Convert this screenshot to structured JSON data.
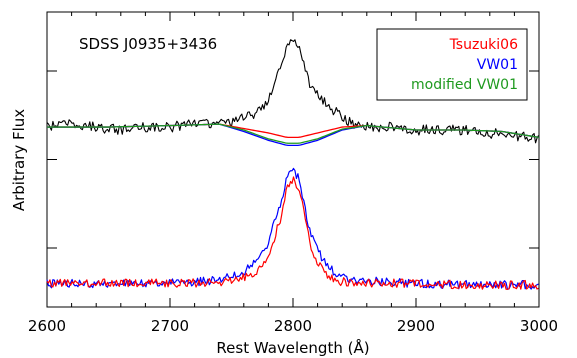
{
  "chart_data": {
    "type": "line",
    "title": "SDSS J0935+3436",
    "xlabel": "Rest Wavelength (Å)",
    "ylabel": "Arbitrary Flux",
    "xlim": [
      2600,
      3000
    ],
    "ylim": [
      0,
      1
    ],
    "x_ticks": [
      2600,
      2700,
      2800,
      2900,
      3000
    ],
    "grid": false,
    "legend_position": "top-right",
    "legend": [
      {
        "name": "Tsuzuki06",
        "color": "#ff0000"
      },
      {
        "name": "VW01",
        "color": "#0000ff"
      },
      {
        "name": "modified VW01",
        "color": "#1f9a1f"
      }
    ],
    "observed_spectrum": {
      "color": "#000000",
      "points": [
        [
          2600,
          0.61
        ],
        [
          2620,
          0.62
        ],
        [
          2640,
          0.61
        ],
        [
          2660,
          0.6
        ],
        [
          2680,
          0.61
        ],
        [
          2700,
          0.61
        ],
        [
          2720,
          0.62
        ],
        [
          2740,
          0.62
        ],
        [
          2750,
          0.63
        ],
        [
          2760,
          0.64
        ],
        [
          2770,
          0.66
        ],
        [
          2780,
          0.7
        ],
        [
          2785,
          0.76
        ],
        [
          2790,
          0.82
        ],
        [
          2795,
          0.88
        ],
        [
          2800,
          0.9
        ],
        [
          2805,
          0.87
        ],
        [
          2810,
          0.8
        ],
        [
          2815,
          0.74
        ],
        [
          2820,
          0.72
        ],
        [
          2830,
          0.68
        ],
        [
          2840,
          0.64
        ],
        [
          2850,
          0.62
        ],
        [
          2860,
          0.61
        ],
        [
          2870,
          0.61
        ],
        [
          2880,
          0.61
        ],
        [
          2900,
          0.6
        ],
        [
          2920,
          0.6
        ],
        [
          2940,
          0.6
        ],
        [
          2960,
          0.59
        ],
        [
          2980,
          0.58
        ],
        [
          3000,
          0.57
        ]
      ]
    },
    "models": [
      {
        "name": "Tsuzuki06",
        "color": "#ff0000",
        "points": [
          [
            2600,
            0.61
          ],
          [
            2650,
            0.61
          ],
          [
            2700,
            0.615
          ],
          [
            2740,
            0.62
          ],
          [
            2760,
            0.605
          ],
          [
            2780,
            0.59
          ],
          [
            2795,
            0.575
          ],
          [
            2805,
            0.575
          ],
          [
            2820,
            0.59
          ],
          [
            2840,
            0.61
          ],
          [
            2860,
            0.615
          ],
          [
            2900,
            0.6
          ],
          [
            2940,
            0.6
          ],
          [
            2970,
            0.595
          ],
          [
            3000,
            0.575
          ]
        ]
      },
      {
        "name": "VW01",
        "color": "#0000ff",
        "points": [
          [
            2600,
            0.61
          ],
          [
            2650,
            0.61
          ],
          [
            2700,
            0.615
          ],
          [
            2740,
            0.62
          ],
          [
            2760,
            0.595
          ],
          [
            2780,
            0.565
          ],
          [
            2795,
            0.548
          ],
          [
            2805,
            0.548
          ],
          [
            2820,
            0.565
          ],
          [
            2840,
            0.6
          ],
          [
            2860,
            0.615
          ],
          [
            2900,
            0.6
          ],
          [
            2940,
            0.6
          ],
          [
            2970,
            0.595
          ],
          [
            3000,
            0.575
          ]
        ]
      },
      {
        "name": "modified VW01",
        "color": "#1f9a1f",
        "points": [
          [
            2600,
            0.61
          ],
          [
            2650,
            0.61
          ],
          [
            2700,
            0.615
          ],
          [
            2740,
            0.62
          ],
          [
            2760,
            0.6
          ],
          [
            2780,
            0.57
          ],
          [
            2795,
            0.555
          ],
          [
            2805,
            0.555
          ],
          [
            2820,
            0.57
          ],
          [
            2840,
            0.603
          ],
          [
            2860,
            0.615
          ],
          [
            2900,
            0.6
          ],
          [
            2940,
            0.6
          ],
          [
            2970,
            0.595
          ],
          [
            3000,
            0.575
          ]
        ]
      }
    ],
    "residual_spectra": [
      {
        "name": "VW01",
        "color": "#0000ff",
        "points": [
          [
            2600,
            0.08
          ],
          [
            2650,
            0.08
          ],
          [
            2700,
            0.08
          ],
          [
            2740,
            0.09
          ],
          [
            2760,
            0.12
          ],
          [
            2770,
            0.15
          ],
          [
            2780,
            0.22
          ],
          [
            2790,
            0.35
          ],
          [
            2795,
            0.44
          ],
          [
            2800,
            0.47
          ],
          [
            2805,
            0.43
          ],
          [
            2810,
            0.33
          ],
          [
            2815,
            0.24
          ],
          [
            2820,
            0.19
          ],
          [
            2830,
            0.13
          ],
          [
            2840,
            0.1
          ],
          [
            2850,
            0.09
          ],
          [
            2900,
            0.08
          ],
          [
            2950,
            0.075
          ],
          [
            3000,
            0.075
          ]
        ]
      },
      {
        "name": "Tsuzuki06",
        "color": "#ff0000",
        "points": [
          [
            2600,
            0.08
          ],
          [
            2650,
            0.08
          ],
          [
            2700,
            0.08
          ],
          [
            2740,
            0.085
          ],
          [
            2760,
            0.1
          ],
          [
            2770,
            0.12
          ],
          [
            2780,
            0.17
          ],
          [
            2790,
            0.3
          ],
          [
            2795,
            0.4
          ],
          [
            2800,
            0.44
          ],
          [
            2805,
            0.4
          ],
          [
            2810,
            0.3
          ],
          [
            2815,
            0.2
          ],
          [
            2820,
            0.15
          ],
          [
            2830,
            0.1
          ],
          [
            2840,
            0.085
          ],
          [
            2850,
            0.08
          ],
          [
            2900,
            0.08
          ],
          [
            2950,
            0.075
          ],
          [
            3000,
            0.075
          ]
        ]
      }
    ]
  }
}
